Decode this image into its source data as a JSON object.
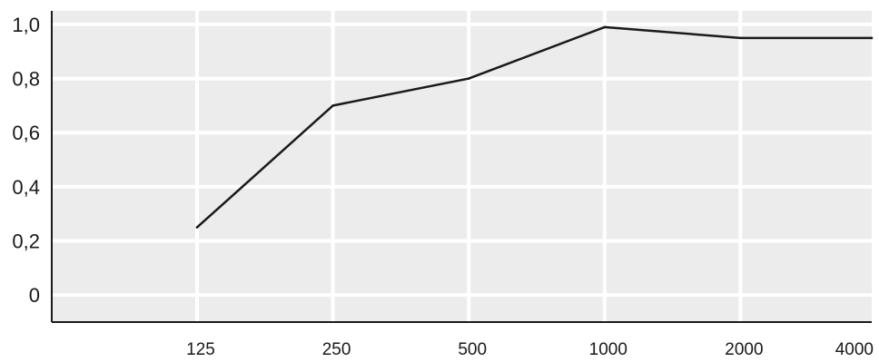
{
  "chart_data": {
    "type": "line",
    "title": "",
    "xlabel": "",
    "ylabel": "",
    "categories": [
      "125",
      "250",
      "500",
      "1000",
      "2000",
      "4000"
    ],
    "series": [
      {
        "values": [
          0.25,
          0.7,
          0.8,
          0.99,
          0.95,
          0.95
        ]
      }
    ],
    "y_ticks": [
      {
        "value": 0,
        "label": "0"
      },
      {
        "value": 0.2,
        "label": "0,2"
      },
      {
        "value": 0.4,
        "label": "0,4"
      },
      {
        "value": 0.6,
        "label": "0,6"
      },
      {
        "value": 0.8,
        "label": "0,8"
      },
      {
        "value": 1.0,
        "label": "1,0"
      }
    ],
    "ylim": [
      -0.1,
      1.05
    ],
    "grid": true,
    "legend": "none",
    "colors": {
      "plot_background": "#ececec",
      "grid": "#ffffff",
      "line": "#1a1a1a",
      "axis": "#1a1a1a"
    }
  }
}
